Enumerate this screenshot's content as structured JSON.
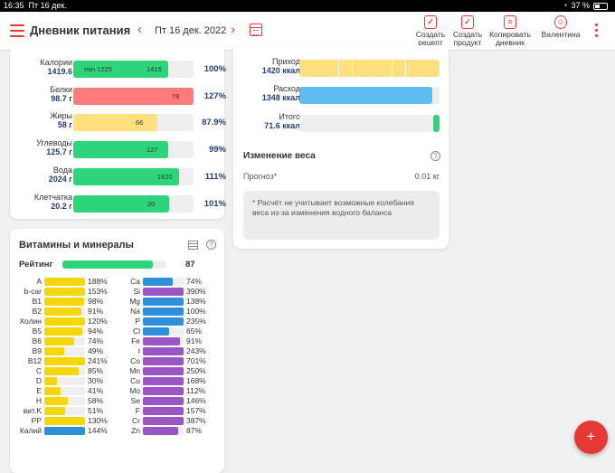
{
  "status_bar": {
    "time": "16:35",
    "date": "Пт 16 дек.",
    "battery": "37 %"
  },
  "header": {
    "app_title": "Дневник питания",
    "date": "Пт 16 дек. 2022",
    "prev_icon": "chevron-left-icon",
    "next_icon": "chevron-right-icon",
    "calendar_icon": "calendar-icon",
    "buttons": [
      {
        "label1": "Создать",
        "label2": "рецепт",
        "icon": "recipe-icon"
      },
      {
        "label1": "Создать",
        "label2": "продукт",
        "icon": "product-icon"
      },
      {
        "label1": "Копировать",
        "label2": "дневник",
        "icon": "copy-icon"
      },
      {
        "label1": "Валентина",
        "label2": "",
        "icon": "users-icon"
      }
    ],
    "menu_icon": "hamburger-icon",
    "more_icon": "more-vertical-icon"
  },
  "nutrients": [
    {
      "name": "Калории",
      "value": "1419.6",
      "min_text": "min 1225",
      "bar_text": "1415",
      "percent": "100%",
      "fill": 0.79,
      "color": "#2ed47a"
    },
    {
      "name": "Белки",
      "value": "98.7 г",
      "min_text": "",
      "bar_text": "78",
      "percent": "127%",
      "fill": 1.0,
      "color": "#ff7a7a"
    },
    {
      "name": "Жиры",
      "value": "58 г",
      "min_text": "",
      "bar_text": "66",
      "percent": "87.9%",
      "fill": 0.7,
      "color": "#ffdf7e"
    },
    {
      "name": "Углеводы",
      "value": "125.7 г",
      "min_text": "",
      "bar_text": "127",
      "percent": "99%",
      "fill": 0.79,
      "color": "#2ed47a"
    },
    {
      "name": "Вода",
      "value": "2024 г",
      "min_text": "",
      "bar_text": "1820",
      "percent": "111%",
      "fill": 0.88,
      "color": "#2ed47a"
    },
    {
      "name": "Клетчатка",
      "value": "20.2 г",
      "min_text": "",
      "bar_text": "20",
      "percent": "101%",
      "fill": 0.8,
      "color": "#2ed47a"
    }
  ],
  "vitamins": {
    "title": "Витамины и минералы",
    "table_icon": "table-icon",
    "help_icon": "help-circle-icon",
    "rating_label": "Рейтинг",
    "rating_value": "87",
    "rating_fill": 0.87,
    "colors": {
      "yellow": "#f5d60a",
      "blue": "#2f8fdb",
      "purple": "#9b55c4",
      "green": "#2ed47a"
    },
    "left": [
      {
        "name": "A",
        "percent": "188%",
        "fill": 1.0,
        "color": "yellow"
      },
      {
        "name": "b-car",
        "percent": "153%",
        "fill": 1.0,
        "color": "yellow"
      },
      {
        "name": "B1",
        "percent": "98%",
        "fill": 0.98,
        "color": "yellow"
      },
      {
        "name": "B2",
        "percent": "91%",
        "fill": 0.91,
        "color": "yellow"
      },
      {
        "name": "Холин",
        "percent": "120%",
        "fill": 1.0,
        "color": "yellow"
      },
      {
        "name": "B5",
        "percent": "94%",
        "fill": 0.94,
        "color": "yellow"
      },
      {
        "name": "B6",
        "percent": "74%",
        "fill": 0.74,
        "color": "yellow"
      },
      {
        "name": "B9",
        "percent": "49%",
        "fill": 0.49,
        "color": "yellow"
      },
      {
        "name": "B12",
        "percent": "241%",
        "fill": 1.0,
        "color": "yellow"
      },
      {
        "name": "C",
        "percent": "85%",
        "fill": 0.85,
        "color": "yellow"
      },
      {
        "name": "D",
        "percent": "30%",
        "fill": 0.3,
        "color": "yellow"
      },
      {
        "name": "E",
        "percent": "41%",
        "fill": 0.41,
        "color": "yellow"
      },
      {
        "name": "H",
        "percent": "58%",
        "fill": 0.58,
        "color": "yellow"
      },
      {
        "name": "вит.K",
        "percent": "51%",
        "fill": 0.51,
        "color": "yellow"
      },
      {
        "name": "PP",
        "percent": "130%",
        "fill": 1.0,
        "color": "yellow"
      },
      {
        "name": "Калий",
        "percent": "144%",
        "fill": 1.0,
        "color": "blue"
      }
    ],
    "right": [
      {
        "name": "Ca",
        "percent": "74%",
        "fill": 0.74,
        "color": "blue"
      },
      {
        "name": "Si",
        "percent": "390%",
        "fill": 1.0,
        "color": "purple"
      },
      {
        "name": "Mg",
        "percent": "138%",
        "fill": 1.0,
        "color": "blue"
      },
      {
        "name": "Na",
        "percent": "100%",
        "fill": 1.0,
        "color": "blue"
      },
      {
        "name": "P",
        "percent": "235%",
        "fill": 1.0,
        "color": "blue"
      },
      {
        "name": "Cl",
        "percent": "65%",
        "fill": 0.65,
        "color": "blue"
      },
      {
        "name": "Fe",
        "percent": "91%",
        "fill": 0.91,
        "color": "purple"
      },
      {
        "name": "I",
        "percent": "243%",
        "fill": 1.0,
        "color": "purple"
      },
      {
        "name": "Co",
        "percent": "701%",
        "fill": 1.0,
        "color": "purple"
      },
      {
        "name": "Mn",
        "percent": "250%",
        "fill": 1.0,
        "color": "purple"
      },
      {
        "name": "Cu",
        "percent": "168%",
        "fill": 1.0,
        "color": "purple"
      },
      {
        "name": "Mo",
        "percent": "112%",
        "fill": 1.0,
        "color": "purple"
      },
      {
        "name": "Se",
        "percent": "146%",
        "fill": 1.0,
        "color": "purple"
      },
      {
        "name": "F",
        "percent": "157%",
        "fill": 1.0,
        "color": "purple"
      },
      {
        "name": "Cr",
        "percent": "387%",
        "fill": 1.0,
        "color": "purple"
      },
      {
        "name": "Zn",
        "percent": "87%",
        "fill": 0.87,
        "color": "purple"
      }
    ]
  },
  "energy": [
    {
      "name": "Приход",
      "value": "1420 ккал",
      "fill": 1.0,
      "color": "#ffdf7e"
    },
    {
      "name": "Расход",
      "value": "1348 ккал",
      "fill": 0.95,
      "color": "#5ebdf0"
    },
    {
      "name": "Итого",
      "value": "71.6 ккал",
      "fill": 0.05,
      "color": "#2ed47a"
    }
  ],
  "weight": {
    "title": "Изменение веса",
    "help_icon": "help-circle-icon",
    "forecast_label": "Прогноз*",
    "forecast_value": "0.01 кг",
    "note": "* Расчёт не учитывает возможные колебания веса из-за изменения водного баланса"
  },
  "fab": {
    "label": "+",
    "icon": "plus-icon"
  }
}
